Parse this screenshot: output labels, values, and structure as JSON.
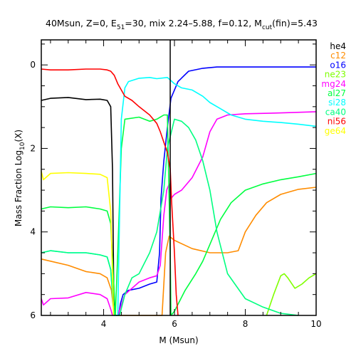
{
  "chart_data": {
    "type": "line",
    "title": {
      "prefix": "40Msun, Z=0, E",
      "e_sub": "51",
      "middle": "=30, mix 2.24–5.88, f=0.12, M",
      "m_sub": "cut",
      "suffix": "(fin)=5.43"
    },
    "xlabel": "M (Msun)",
    "ylabel": {
      "prefix": "Mass Fraction Log",
      "sub": "10",
      "suffix": "(X)"
    },
    "xlim": [
      2.24,
      10
    ],
    "ylim": [
      -6,
      0.6
    ],
    "x_ticks": [
      4,
      6,
      8,
      10
    ],
    "x_tick_labels": [
      "4",
      "6",
      "8",
      "10"
    ],
    "y_ticks": [
      0,
      -2,
      -4,
      -6
    ],
    "y_tick_labels": [
      "0",
      "2",
      "4",
      "6"
    ],
    "vertical_line_x": 5.88,
    "grid": false,
    "legend_position": "right",
    "series": [
      {
        "name": "he4",
        "color": "#000000",
        "x": [
          2.24,
          2.5,
          3.0,
          3.5,
          3.9,
          4.1,
          4.2,
          4.25,
          4.28,
          4.3
        ],
        "y": [
          -0.85,
          -0.8,
          -0.78,
          -0.83,
          -0.82,
          -0.85,
          -1.0,
          -2.5,
          -5.0,
          -6.0
        ]
      },
      {
        "name": "c12",
        "color": "#ff8c00",
        "x": [
          2.24,
          2.5,
          3.0,
          3.5,
          3.9,
          4.1,
          4.22,
          4.3,
          4.35,
          5.65,
          5.75,
          5.85,
          6.0,
          6.5,
          7.0,
          7.5,
          7.8,
          8.0,
          8.3,
          8.6,
          9.0,
          9.5,
          10.0
        ],
        "y": [
          -4.65,
          -4.7,
          -4.8,
          -4.95,
          -5.0,
          -5.1,
          -5.4,
          -6.0,
          -6.0,
          -6.0,
          -4.5,
          -4.1,
          -4.2,
          -4.4,
          -4.5,
          -4.5,
          -4.45,
          -4.0,
          -3.6,
          -3.3,
          -3.1,
          -2.98,
          -2.93
        ]
      },
      {
        "name": "o16",
        "color": "#0000ff",
        "x": [
          4.42,
          4.48,
          4.55,
          4.7,
          5.0,
          5.3,
          5.5,
          5.58,
          5.62,
          5.7,
          5.8,
          5.9,
          6.1,
          6.4,
          6.8,
          7.2,
          8.0,
          9.0,
          10.0
        ],
        "y": [
          -6.0,
          -5.7,
          -5.5,
          -5.4,
          -5.35,
          -5.25,
          -5.2,
          -4.5,
          -3.2,
          -2.3,
          -1.5,
          -0.8,
          -0.4,
          -0.15,
          -0.08,
          -0.05,
          -0.05,
          -0.05,
          -0.05
        ]
      },
      {
        "name": "ne23",
        "color": "#7fff00",
        "x": [
          8.6,
          8.8,
          9.0,
          9.1,
          9.2,
          9.4,
          9.6,
          9.8,
          10.0
        ],
        "y": [
          -6.0,
          -5.5,
          -5.05,
          -5.0,
          -5.1,
          -5.35,
          -5.25,
          -5.1,
          -5.0
        ]
      },
      {
        "name": "mg24",
        "color": "#ff00ff",
        "x": [
          2.24,
          2.3,
          2.5,
          3.0,
          3.5,
          3.9,
          4.1,
          4.2,
          4.25,
          4.3,
          4.4,
          4.48,
          4.6,
          5.0,
          5.3,
          5.5,
          5.6,
          5.7,
          5.78,
          5.85,
          5.9,
          6.0,
          6.2,
          6.5,
          6.8,
          7.0,
          7.2,
          7.5,
          8.0,
          9.0,
          10.0
        ],
        "y": [
          -5.6,
          -5.75,
          -5.6,
          -5.58,
          -5.45,
          -5.5,
          -5.6,
          -5.85,
          -6.0,
          -6.0,
          -6.0,
          -5.8,
          -5.5,
          -5.2,
          -5.1,
          -5.05,
          -4.8,
          -3.6,
          -3.0,
          -2.85,
          -3.2,
          -3.1,
          -3.0,
          -2.7,
          -2.2,
          -1.6,
          -1.3,
          -1.2,
          -1.17,
          -1.15,
          -1.12
        ]
      },
      {
        "name": "al27",
        "color": "#00ff40",
        "x": [
          2.24,
          2.5,
          3.0,
          3.5,
          3.9,
          4.1,
          4.2,
          4.27,
          4.33,
          4.4,
          4.5,
          4.6,
          5.0,
          5.3,
          5.5,
          5.6,
          5.7,
          5.8,
          5.88,
          5.9,
          6.0,
          6.3,
          6.6,
          6.8,
          7.0,
          7.3,
          7.6,
          8.0,
          8.5,
          9.0,
          9.5,
          10.0
        ],
        "y": [
          -3.45,
          -3.4,
          -3.42,
          -3.4,
          -3.45,
          -3.5,
          -3.8,
          -5.0,
          -6.0,
          -4.5,
          -2.0,
          -1.3,
          -1.25,
          -1.35,
          -1.3,
          -1.25,
          -1.2,
          -1.2,
          -4.5,
          -6.0,
          -5.9,
          -5.4,
          -5.0,
          -4.7,
          -4.3,
          -3.7,
          -3.3,
          -3.0,
          -2.85,
          -2.75,
          -2.68,
          -2.6
        ]
      },
      {
        "name": "si28",
        "color": "#00ffff",
        "x": [
          2.24,
          2.5,
          3.0,
          3.5,
          3.9,
          4.1,
          4.2,
          4.25,
          4.3,
          4.4,
          4.5,
          4.6,
          4.7,
          5.0,
          5.3,
          5.5,
          5.8,
          6.0,
          6.2,
          6.5,
          6.8,
          7.0,
          7.3,
          7.6,
          8.0,
          8.5,
          9.0,
          9.5,
          10.0
        ],
        "y": [
          -4.5,
          -4.45,
          -4.5,
          -4.5,
          -4.55,
          -4.6,
          -4.9,
          -5.5,
          -6.0,
          -6.0,
          -1.3,
          -0.55,
          -0.4,
          -0.32,
          -0.3,
          -0.33,
          -0.3,
          -0.45,
          -0.55,
          -0.6,
          -0.75,
          -0.9,
          -1.05,
          -1.2,
          -1.3,
          -1.35,
          -1.38,
          -1.42,
          -1.47
        ]
      },
      {
        "name": "ca40",
        "color": "#00ff80",
        "x": [
          2.24,
          2.5,
          3.0,
          3.5,
          3.9,
          4.1,
          4.2,
          4.25,
          4.3,
          4.38,
          4.45,
          4.6,
          4.8,
          5.0,
          5.3,
          5.5,
          5.7,
          5.8,
          6.0,
          6.2,
          6.4,
          6.6,
          6.8,
          7.0,
          7.2,
          7.5,
          8.0,
          8.5,
          9.0,
          9.5
        ],
        "y": [
          -4.5,
          -4.45,
          -4.5,
          -4.5,
          -4.55,
          -4.6,
          -4.9,
          -5.5,
          -6.0,
          -6.0,
          -6.0,
          -5.5,
          -5.1,
          -5.0,
          -4.5,
          -4.0,
          -3.0,
          -2.0,
          -1.3,
          -1.35,
          -1.5,
          -1.8,
          -2.3,
          -3.0,
          -4.0,
          -5.0,
          -5.6,
          -5.8,
          -5.95,
          -6.0
        ]
      },
      {
        "name": "ni56",
        "color": "#ff0000",
        "x": [
          2.24,
          2.5,
          3.0,
          3.5,
          3.9,
          4.1,
          4.2,
          4.3,
          4.4,
          4.5,
          4.6,
          4.8,
          5.0,
          5.3,
          5.5,
          5.6,
          5.7,
          5.8,
          5.88,
          5.92,
          6.0,
          6.05,
          6.1
        ],
        "y": [
          -0.1,
          -0.12,
          -0.12,
          -0.1,
          -0.1,
          -0.12,
          -0.15,
          -0.25,
          -0.45,
          -0.6,
          -0.75,
          -0.85,
          -1.0,
          -1.2,
          -1.4,
          -1.6,
          -1.85,
          -2.1,
          -2.5,
          -3.3,
          -4.5,
          -5.5,
          -6.0
        ]
      },
      {
        "name": "ge64",
        "color": "#ffff00",
        "x": [
          2.24,
          2.3,
          2.5,
          3.0,
          3.5,
          3.9,
          4.1,
          4.2,
          4.25,
          4.28
        ],
        "y": [
          -2.55,
          -2.75,
          -2.6,
          -2.58,
          -2.6,
          -2.62,
          -2.7,
          -3.5,
          -5.0,
          -6.0
        ]
      }
    ]
  }
}
